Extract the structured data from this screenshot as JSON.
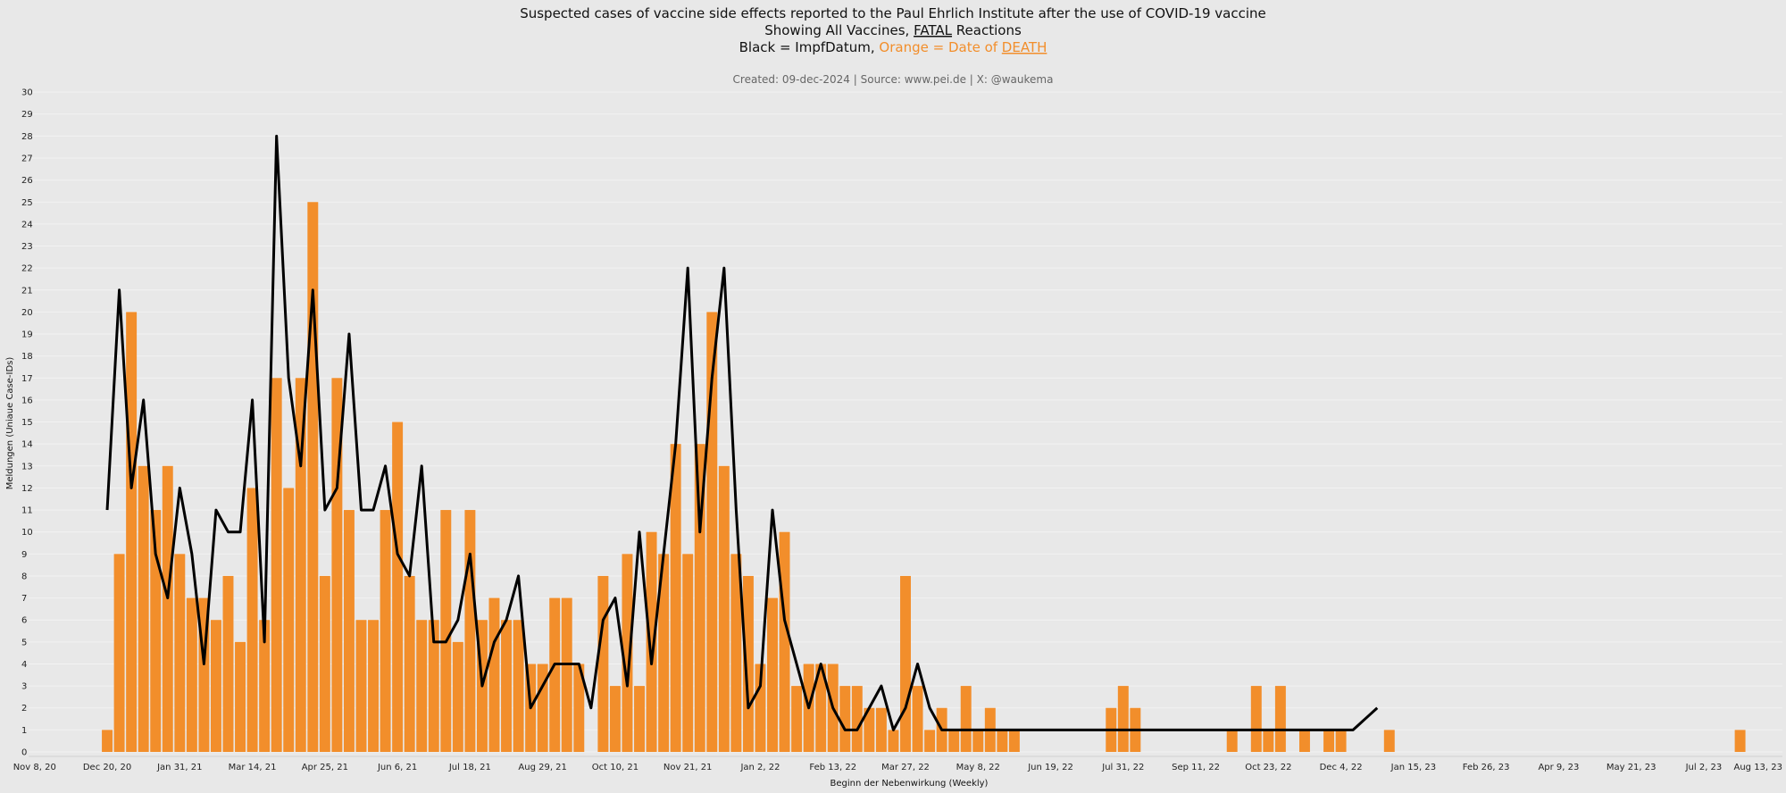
{
  "colors": {
    "bar": "#f28e2b",
    "line": "#000000",
    "background": "#e8e8e8",
    "grid": "#f2f2f2"
  },
  "header": {
    "title_line1": "Suspected cases of vaccine side effects reported to the Paul Ehrlich Institute after the use of COVID-19 vaccine",
    "title_line2_prefix": "Showing All Vaccines, ",
    "title_line2_fatal": "FATAL",
    "title_line2_suffix": " Reactions",
    "title_line3_black": "Black = ImpfDatum, ",
    "title_line3_orange_prefix": "Orange = Date of ",
    "title_line3_death": "DEATH",
    "subtitle": "Created: 09-dec-2024 | Source: www.pei.de | X: @waukema"
  },
  "chart_data": {
    "type": "bar",
    "xlabel": "Beginn der Nebenwirkung (Weekly)",
    "ylabel": "Meldungen (Uniaue Case-IDs)",
    "ylim": [
      0,
      30
    ],
    "y_ticks": [
      0,
      1,
      2,
      3,
      4,
      5,
      6,
      7,
      8,
      9,
      10,
      11,
      12,
      13,
      14,
      15,
      16,
      17,
      18,
      19,
      20,
      21,
      22,
      23,
      24,
      25,
      26,
      27,
      28,
      29,
      30
    ],
    "x_tick_labels": [
      "Nov 8, 20",
      "Dec 20, 20",
      "Jan 31, 21",
      "Mar 14, 21",
      "Apr 25, 21",
      "Jun 6, 21",
      "Jul 18, 21",
      "Aug 29, 21",
      "Oct 10, 21",
      "Nov 21, 21",
      "Jan 2, 22",
      "Feb 13, 22",
      "Mar 27, 22",
      "May 8, 22",
      "Jun 19, 22",
      "Jul 31, 22",
      "Sep 11, 22",
      "Oct 23, 22",
      "Dec 4, 22",
      "Jan 15, 23",
      "Feb 26, 23",
      "Apr 9, 23",
      "May 21, 23",
      "Jul 2, 23",
      "Aug 13, 23"
    ],
    "grid": true,
    "legend": "none",
    "series": [
      {
        "color": "#f28e2b",
        "kind": "bar",
        "values": [
          0,
          0,
          0,
          0,
          0,
          0,
          1,
          9,
          20,
          13,
          11,
          13,
          9,
          7,
          7,
          6,
          8,
          5,
          12,
          6,
          17,
          12,
          17,
          25,
          8,
          17,
          11,
          6,
          6,
          11,
          15,
          8,
          6,
          6,
          11,
          5,
          11,
          6,
          7,
          6,
          6,
          4,
          4,
          7,
          7,
          4,
          0,
          8,
          3,
          9,
          3,
          10,
          9,
          14,
          9,
          14,
          20,
          13,
          9,
          8,
          4,
          7,
          10,
          3,
          4,
          4,
          4,
          3,
          3,
          2,
          2,
          1,
          8,
          3,
          1,
          2,
          1,
          3,
          1,
          2,
          1,
          1,
          0,
          0,
          0,
          0,
          0,
          0,
          0,
          2,
          3,
          2,
          0,
          0,
          0,
          0,
          0,
          0,
          0,
          1,
          0,
          3,
          1,
          3,
          0,
          1,
          0,
          1,
          1,
          0,
          0,
          0,
          1,
          0,
          0,
          0,
          0,
          0,
          0,
          0,
          0,
          0,
          0,
          0,
          0,
          0,
          0,
          0,
          0,
          0,
          0,
          0,
          0,
          0,
          0,
          0,
          0,
          0,
          0,
          0,
          0,
          1,
          0,
          0,
          0
        ]
      },
      {
        "color": "#000000",
        "kind": "line",
        "start_index": 6,
        "values": [
          11,
          21,
          12,
          16,
          9,
          7,
          12,
          9,
          4,
          11,
          10,
          10,
          16,
          5,
          28,
          17,
          13,
          21,
          11,
          12,
          19,
          11,
          11,
          13,
          9,
          8,
          13,
          5,
          5,
          6,
          9,
          3,
          5,
          6,
          8,
          2,
          3,
          4,
          4,
          4,
          2,
          6,
          7,
          3,
          10,
          4,
          9,
          14,
          22,
          10,
          17,
          22,
          11,
          2,
          3,
          11,
          6,
          4,
          2,
          4,
          2,
          1,
          1,
          2,
          3,
          1,
          2,
          4,
          2,
          1,
          1,
          1,
          1,
          1,
          1,
          1,
          1,
          1,
          1,
          1,
          1,
          1,
          1,
          1,
          1,
          1,
          1,
          1,
          1,
          1,
          1,
          1,
          1,
          1,
          1,
          1,
          1,
          1,
          1,
          1,
          1,
          1,
          1,
          1,
          1.5,
          2
        ]
      }
    ]
  }
}
